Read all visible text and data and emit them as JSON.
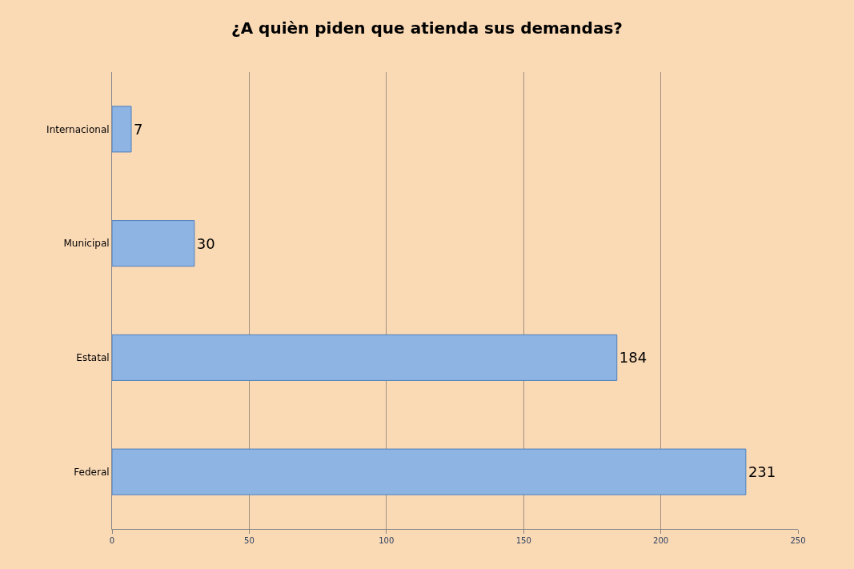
{
  "chart_data": {
    "type": "bar",
    "orientation": "horizontal",
    "title": "¿A quièn piden que atienda sus demandas?",
    "categories": [
      "Internacional",
      "Municipal",
      "Estatal",
      "Federal"
    ],
    "values": [
      7,
      30,
      184,
      231
    ],
    "color": "#8db4e2",
    "xlim": [
      0,
      250
    ],
    "xticks": [
      0,
      50,
      100,
      150,
      200,
      250
    ],
    "grid": "x",
    "data_labels": true
  }
}
